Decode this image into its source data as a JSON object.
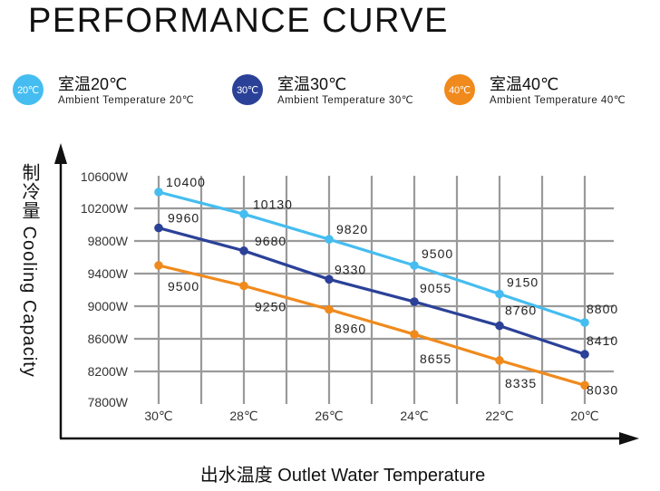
{
  "chart_data": {
    "type": "line",
    "title": "PERFORMANCE CURVE",
    "xlabel": "出水温度 Outlet Water Temperature",
    "ylabel": "制冷量 Cooling Capacity",
    "ylabel_cn": "制冷量",
    "ylabel_en": "Cooling Capacity",
    "x": [
      30,
      28,
      26,
      24,
      22,
      20
    ],
    "x_tick_labels": [
      "30℃",
      "28℃",
      "26℃",
      "24℃",
      "22℃",
      "20℃"
    ],
    "y_tick_values": [
      10600,
      10200,
      9800,
      9400,
      9000,
      8600,
      8200,
      7800
    ],
    "y_tick_labels": [
      "10600W",
      "10200W",
      "9800W",
      "9400W",
      "9000W",
      "8600W",
      "8200W",
      "7800W"
    ],
    "ylim": [
      7800,
      10600
    ],
    "grid": true,
    "legend_position": "top",
    "series": [
      {
        "name": "室温20℃",
        "name_en": "Ambient Temperature 20℃",
        "badge": "20℃",
        "color": "#45bdf0",
        "values": [
          10400,
          10130,
          9820,
          9500,
          9150,
          8800
        ],
        "labels": [
          "10400",
          "10130",
          "9820",
          "9500",
          "9150",
          "8800"
        ]
      },
      {
        "name": "室温30℃",
        "name_en": "Ambient Temperature 30℃",
        "badge": "30℃",
        "color": "#2b4198",
        "values": [
          9960,
          9680,
          9330,
          9055,
          8760,
          8410
        ],
        "labels": [
          "9960",
          "9680",
          "9330",
          "9055",
          "8760",
          "8410"
        ]
      },
      {
        "name": "室温40℃",
        "name_en": "Ambient Temperature 40℃",
        "badge": "40℃",
        "color": "#f08a1c",
        "values": [
          9500,
          9250,
          8960,
          8655,
          8335,
          8030
        ],
        "labels": [
          "9500",
          "9250",
          "8960",
          "8655",
          "8335",
          "8030"
        ]
      }
    ]
  },
  "colors": {
    "grid": "#9a9a9a",
    "axis": "#111111"
  }
}
